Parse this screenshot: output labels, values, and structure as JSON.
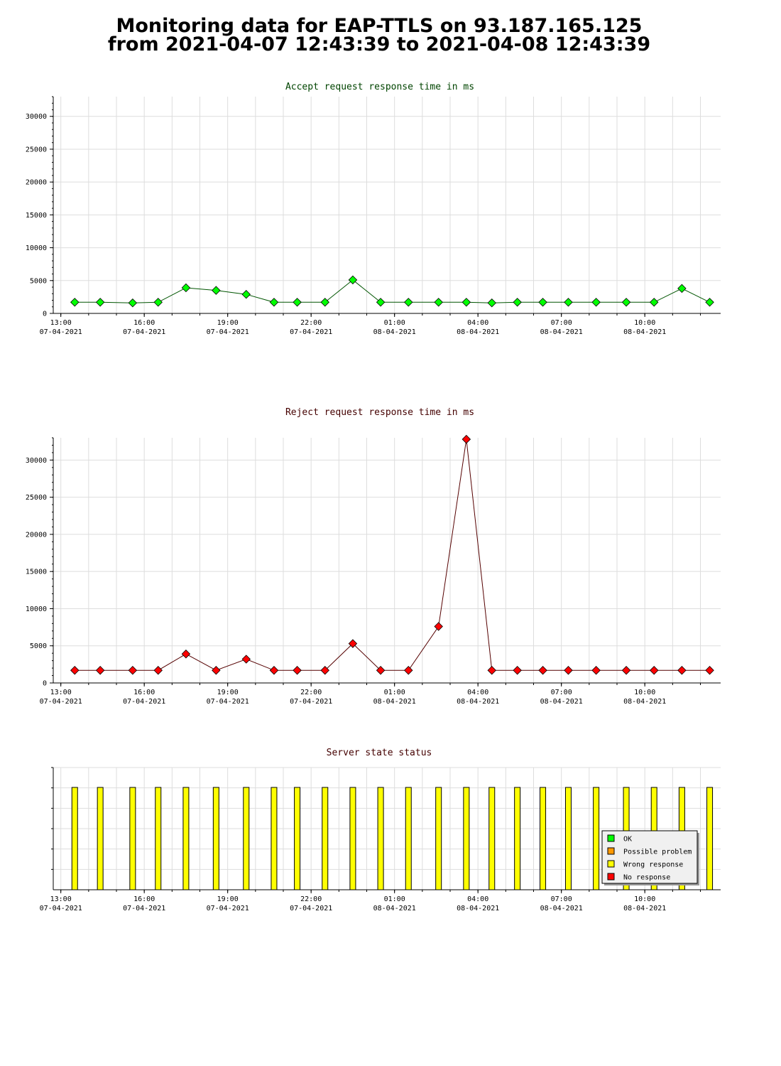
{
  "header": {
    "title_line1": "Monitoring data for EAP-TTLS on 93.187.165.125",
    "title_line2": "from 2021-04-07 12:43:39 to 2021-04-08 12:43:39"
  },
  "x_ticks": [
    {
      "time": "13:00",
      "date": "07-04-2021"
    },
    {
      "time": "16:00",
      "date": "07-04-2021"
    },
    {
      "time": "19:00",
      "date": "07-04-2021"
    },
    {
      "time": "22:00",
      "date": "07-04-2021"
    },
    {
      "time": "01:00",
      "date": "08-04-2021"
    },
    {
      "time": "04:00",
      "date": "08-04-2021"
    },
    {
      "time": "07:00",
      "date": "08-04-2021"
    },
    {
      "time": "10:00",
      "date": "08-04-2021"
    }
  ],
  "colors": {
    "accept_line": "#005500",
    "accept_point": "#00ff00",
    "reject_line": "#550000",
    "reject_point": "#ff0000",
    "accept_title": "#004400",
    "reject_title": "#440000",
    "status_title": "#440000",
    "grid": "#dddddd",
    "status_bar": "#ffff00"
  },
  "chart_data": [
    {
      "type": "line",
      "title": "Accept request response time in ms",
      "ylim": [
        0,
        33000
      ],
      "yticks": [
        0,
        5000,
        10000,
        15000,
        20000,
        25000,
        30000
      ],
      "x": [
        "2021-04-07 13:30",
        "2021-04-07 14:25",
        "2021-04-07 15:35",
        "2021-04-07 16:30",
        "2021-04-07 17:30",
        "2021-04-07 18:35",
        "2021-04-07 19:40",
        "2021-04-07 20:40",
        "2021-04-07 21:30",
        "2021-04-07 22:30",
        "2021-04-07 23:30",
        "2021-04-08 00:30",
        "2021-04-08 01:30",
        "2021-04-08 02:35",
        "2021-04-08 03:35",
        "2021-04-08 04:30",
        "2021-04-08 05:25",
        "2021-04-08 06:20",
        "2021-04-08 07:15",
        "2021-04-08 08:15",
        "2021-04-08 09:20",
        "2021-04-08 10:20",
        "2021-04-08 11:20",
        "2021-04-08 12:20"
      ],
      "series": [
        {
          "values": [
            1700,
            1700,
            1600,
            1700,
            3900,
            3500,
            2900,
            1700,
            1700,
            1700,
            5100,
            1700,
            1700,
            1700,
            1700,
            1600,
            1700,
            1700,
            1700,
            1700,
            1700,
            1700,
            3800,
            1700
          ]
        }
      ]
    },
    {
      "type": "line",
      "title": "Reject request response time in ms",
      "ylim": [
        0,
        33000
      ],
      "yticks": [
        0,
        5000,
        10000,
        15000,
        20000,
        25000,
        30000
      ],
      "x": [
        "2021-04-07 13:30",
        "2021-04-07 14:25",
        "2021-04-07 15:35",
        "2021-04-07 16:30",
        "2021-04-07 17:30",
        "2021-04-07 18:35",
        "2021-04-07 19:40",
        "2021-04-07 20:40",
        "2021-04-07 21:30",
        "2021-04-07 22:30",
        "2021-04-07 23:30",
        "2021-04-08 00:30",
        "2021-04-08 01:30",
        "2021-04-08 02:35",
        "2021-04-08 03:35",
        "2021-04-08 04:30",
        "2021-04-08 05:25",
        "2021-04-08 06:20",
        "2021-04-08 07:15",
        "2021-04-08 08:15",
        "2021-04-08 09:20",
        "2021-04-08 10:20",
        "2021-04-08 11:20",
        "2021-04-08 12:20"
      ],
      "series": [
        {
          "values": [
            1700,
            1700,
            1700,
            1700,
            3900,
            1700,
            3200,
            1700,
            1700,
            1700,
            5300,
            1700,
            1700,
            7600,
            32800,
            1700,
            1700,
            1700,
            1700,
            1700,
            1700,
            1700,
            1700,
            1700
          ]
        }
      ]
    },
    {
      "type": "bar",
      "title": "Server state status",
      "x": [
        "2021-04-07 13:30",
        "2021-04-07 14:25",
        "2021-04-07 15:35",
        "2021-04-07 16:30",
        "2021-04-07 17:30",
        "2021-04-07 18:35",
        "2021-04-07 19:40",
        "2021-04-07 20:40",
        "2021-04-07 21:30",
        "2021-04-07 22:30",
        "2021-04-07 23:30",
        "2021-04-08 00:30",
        "2021-04-08 01:30",
        "2021-04-08 02:35",
        "2021-04-08 03:35",
        "2021-04-08 04:30",
        "2021-04-08 05:25",
        "2021-04-08 06:20",
        "2021-04-08 07:15",
        "2021-04-08 08:15",
        "2021-04-08 09:20",
        "2021-04-08 10:20",
        "2021-04-08 11:20",
        "2021-04-08 12:20"
      ],
      "state": [
        "Wrong response",
        "Wrong response",
        "Wrong response",
        "Wrong response",
        "Wrong response",
        "Wrong response",
        "Wrong response",
        "Wrong response",
        "Wrong response",
        "Wrong response",
        "Wrong response",
        "Wrong response",
        "Wrong response",
        "Wrong response",
        "Wrong response",
        "Wrong response",
        "Wrong response",
        "Wrong response",
        "Wrong response",
        "Wrong response",
        "Wrong response",
        "Wrong response",
        "Wrong response",
        "Wrong response"
      ],
      "legend_position": "bottom-right",
      "legend": [
        {
          "label": "OK",
          "color": "#00ff00"
        },
        {
          "label": "Possible problem",
          "color": "#ff9900"
        },
        {
          "label": "Wrong response",
          "color": "#ffff00"
        },
        {
          "label": "No response",
          "color": "#ff0000"
        }
      ]
    }
  ]
}
